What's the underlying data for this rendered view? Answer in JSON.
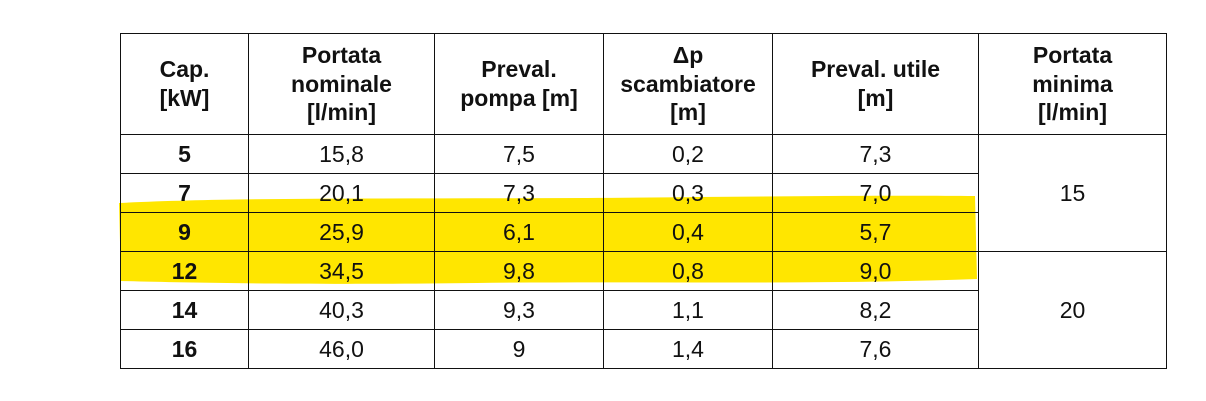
{
  "highlight_color": "#ffe600",
  "table": {
    "headers": [
      {
        "lines": [
          "Cap.",
          "[kW]"
        ]
      },
      {
        "lines": [
          "Portata",
          "nominale",
          "[l/min]"
        ]
      },
      {
        "lines": [
          "Preval.",
          "pompa [m]"
        ]
      },
      {
        "lines": [
          "Δp",
          "scambiatore",
          "[m]"
        ]
      },
      {
        "lines": [
          "Preval. utile",
          "[m]"
        ]
      },
      {
        "lines": [
          "Portata",
          "minima",
          "[l/min]"
        ]
      }
    ],
    "rows": [
      {
        "cap": "5",
        "portata": "15,8",
        "preval_pompa": "7,5",
        "dp": "0,2",
        "preval_utile": "7,3"
      },
      {
        "cap": "7",
        "portata": "20,1",
        "preval_pompa": "7,3",
        "dp": "0,3",
        "preval_utile": "7,0"
      },
      {
        "cap": "9",
        "portata": "25,9",
        "preval_pompa": "6,1",
        "dp": "0,4",
        "preval_utile": "5,7"
      },
      {
        "cap": "12",
        "portata": "34,5",
        "preval_pompa": "9,8",
        "dp": "0,8",
        "preval_utile": "9,0"
      },
      {
        "cap": "14",
        "portata": "40,3",
        "preval_pompa": "9,3",
        "dp": "1,1",
        "preval_utile": "8,2"
      },
      {
        "cap": "16",
        "portata": "46,0",
        "preval_pompa": "9",
        "dp": "1,4",
        "preval_utile": "7,6"
      }
    ],
    "portata_minima_groups": [
      "15",
      "20"
    ]
  }
}
